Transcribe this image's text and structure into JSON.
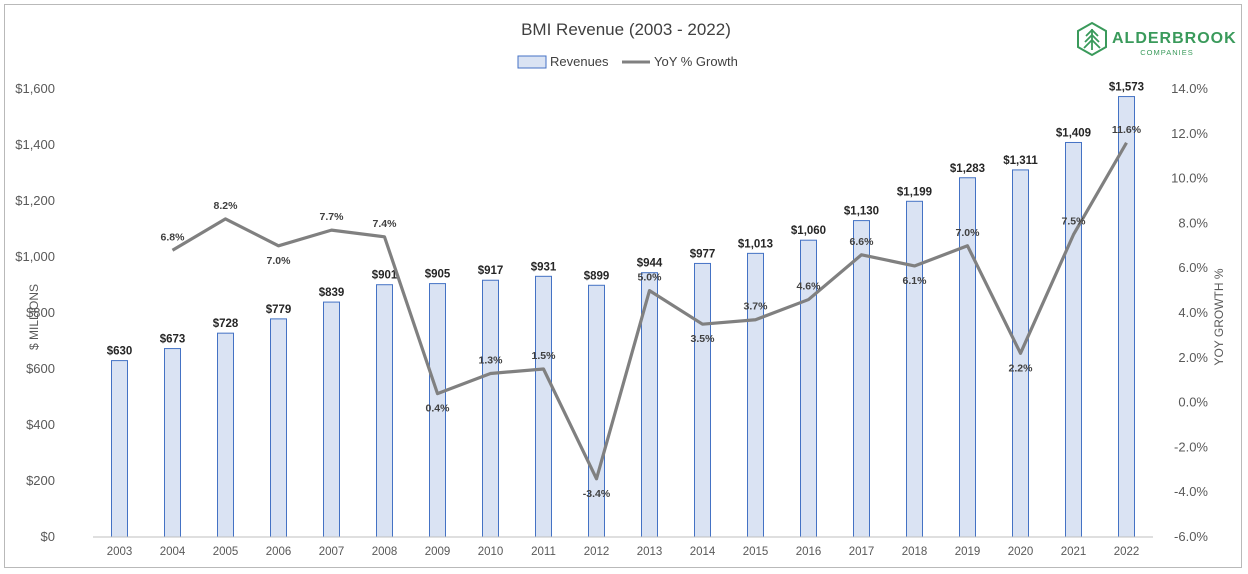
{
  "chart_data": {
    "type": "bar",
    "title": "BMI Revenue (2003 - 2022)",
    "categories": [
      "2003",
      "2004",
      "2005",
      "2006",
      "2007",
      "2008",
      "2009",
      "2010",
      "2011",
      "2012",
      "2013",
      "2014",
      "2015",
      "2016",
      "2017",
      "2018",
      "2019",
      "2020",
      "2021",
      "2022"
    ],
    "series": [
      {
        "name": "Revenues",
        "type": "bar",
        "axis": "left",
        "values": [
          630,
          673,
          728,
          779,
          839,
          901,
          905,
          917,
          931,
          899,
          944,
          977,
          1013,
          1060,
          1130,
          1199,
          1283,
          1311,
          1409,
          1573
        ],
        "labels": [
          "$630",
          "$673",
          "$728",
          "$779",
          "$839",
          "$901",
          "$905",
          "$917",
          "$931",
          "$899",
          "$944",
          "$977",
          "$1,013",
          "$1,060",
          "$1,130",
          "$1,199",
          "$1,283",
          "$1,311",
          "$1,409",
          "$1,573"
        ],
        "color": "#dae3f3",
        "border": "#4472c4"
      },
      {
        "name": "YoY % Growth",
        "type": "line",
        "axis": "right",
        "values": [
          null,
          6.8,
          8.2,
          7.0,
          7.7,
          7.4,
          0.4,
          1.3,
          1.5,
          -3.4,
          5.0,
          3.5,
          3.7,
          4.6,
          6.6,
          6.1,
          7.0,
          2.2,
          7.5,
          11.6
        ],
        "labels": [
          "",
          "6.8%",
          "8.2%",
          "7.0%",
          "7.7%",
          "7.4%",
          "0.4%",
          "1.3%",
          "1.5%",
          "-3.4%",
          "5.0%",
          "3.5%",
          "3.7%",
          "4.6%",
          "6.6%",
          "6.1%",
          "7.0%",
          "2.2%",
          "7.5%",
          "11.6%"
        ],
        "color": "#808080"
      }
    ],
    "ylabel": "$ MILLIONS",
    "y2label": "YOY GROWTH %",
    "ylim": [
      0,
      1600
    ],
    "y2lim": [
      -6,
      14
    ],
    "y_ticks": [
      "$0",
      "$200",
      "$400",
      "$600",
      "$800",
      "$1,000",
      "$1,200",
      "$1,400",
      "$1,600"
    ],
    "y_tick_values": [
      0,
      200,
      400,
      600,
      800,
      1000,
      1200,
      1400,
      1600
    ],
    "y2_ticks": [
      "-6.0%",
      "-4.0%",
      "-2.0%",
      "0.0%",
      "2.0%",
      "4.0%",
      "6.0%",
      "8.0%",
      "10.0%",
      "12.0%",
      "14.0%"
    ],
    "y2_tick_values": [
      -6,
      -4,
      -2,
      0,
      2,
      4,
      6,
      8,
      10,
      12,
      14
    ],
    "grid": false,
    "legend_position": "top-center"
  },
  "logo": {
    "name": "ALDERBROOK",
    "sub": "COMPANIES",
    "color": "#3a9a5b"
  }
}
